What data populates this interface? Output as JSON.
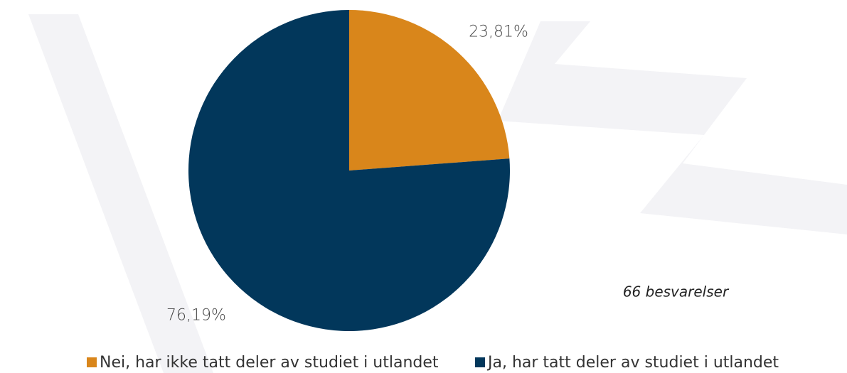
{
  "chart_data": {
    "type": "pie",
    "categories": [
      "Nei, har ikke tatt deler av studiet i utlandet",
      "Ja, har tatt deler av studiet i utlandet"
    ],
    "values": [
      23.81,
      76.19
    ],
    "value_labels": [
      "23,81%",
      "76,19%"
    ],
    "colors": [
      "#d9861b",
      "#02375b"
    ],
    "annotation": "66 besvarelser",
    "legend": "bottom"
  }
}
